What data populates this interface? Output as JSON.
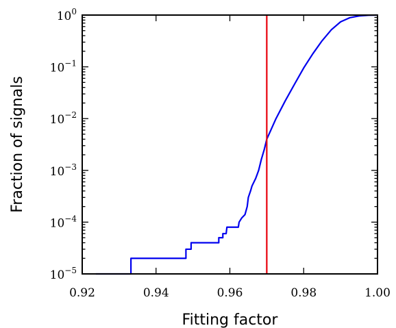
{
  "chart_data": {
    "type": "line",
    "xlabel": "Fitting factor",
    "ylabel": "Fraction of signals",
    "xlim": [
      0.92,
      1.0
    ],
    "ylim": [
      1e-05,
      1
    ],
    "yscale": "log",
    "x_ticks": [
      {
        "value": 0.92,
        "label": "0.92"
      },
      {
        "value": 0.94,
        "label": "0.94"
      },
      {
        "value": 0.96,
        "label": "0.96"
      },
      {
        "value": 0.98,
        "label": "0.98"
      },
      {
        "value": 1.0,
        "label": "1.00"
      }
    ],
    "y_ticks": [
      {
        "value": 1e-05,
        "base": "10",
        "exp": "−5"
      },
      {
        "value": 0.0001,
        "base": "10",
        "exp": "−4"
      },
      {
        "value": 0.001,
        "base": "10",
        "exp": "−3"
      },
      {
        "value": 0.01,
        "base": "10",
        "exp": "−2"
      },
      {
        "value": 0.1,
        "base": "10",
        "exp": "−1"
      },
      {
        "value": 1,
        "base": "10",
        "exp": "0"
      }
    ],
    "grid": false,
    "vertical_line": {
      "x": 0.97,
      "color": "#e8000b"
    },
    "series": [
      {
        "color": "#0000ee",
        "points": [
          [
            0.9237,
            1e-05
          ],
          [
            0.9332,
            1e-05
          ],
          [
            0.9332,
            2e-05
          ],
          [
            0.9481,
            2e-05
          ],
          [
            0.9481,
            3e-05
          ],
          [
            0.9495,
            3e-05
          ],
          [
            0.9495,
            4e-05
          ],
          [
            0.957,
            4e-05
          ],
          [
            0.957,
            5e-05
          ],
          [
            0.9581,
            5e-05
          ],
          [
            0.9581,
            6e-05
          ],
          [
            0.959,
            6e-05
          ],
          [
            0.9592,
            8e-05
          ],
          [
            0.9623,
            8e-05
          ],
          [
            0.9625,
            0.0001
          ],
          [
            0.9632,
            0.00012
          ],
          [
            0.9641,
            0.00014
          ],
          [
            0.9647,
            0.0002
          ],
          [
            0.965,
            0.0003
          ],
          [
            0.9656,
            0.0004
          ],
          [
            0.966,
            0.0005
          ],
          [
            0.967,
            0.0007
          ],
          [
            0.9678,
            0.001
          ],
          [
            0.9685,
            0.0016
          ],
          [
            0.9693,
            0.0025
          ],
          [
            0.97,
            0.004
          ],
          [
            0.9725,
            0.01
          ],
          [
            0.975,
            0.022
          ],
          [
            0.9775,
            0.046
          ],
          [
            0.98,
            0.095
          ],
          [
            0.9825,
            0.18
          ],
          [
            0.985,
            0.32
          ],
          [
            0.9875,
            0.52
          ],
          [
            0.99,
            0.74
          ],
          [
            0.9925,
            0.89
          ],
          [
            0.995,
            0.96
          ],
          [
            0.9975,
            0.99
          ],
          [
            0.9997,
            1.0
          ]
        ]
      }
    ]
  }
}
